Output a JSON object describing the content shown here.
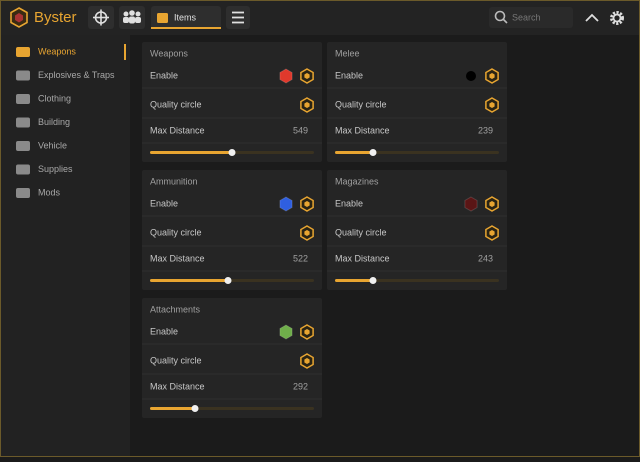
{
  "header": {
    "app_name": "Byster",
    "tab": "Items",
    "search_placeholder": "Search"
  },
  "sidebar": {
    "items": [
      "Weapons",
      "Explosives & Traps",
      "Clothing",
      "Building",
      "Vehicle",
      "Supplies",
      "Mods"
    ],
    "active": 0
  },
  "cards": [
    {
      "title": "Weapons",
      "enable_label": "Enable",
      "quality_label": "Quality circle",
      "distance_label": "Max Distance",
      "distance": "549",
      "enable_color": "#e0392c",
      "enable_shape": "hexagon"
    },
    {
      "title": "Melee",
      "enable_label": "Enable",
      "quality_label": "Quality circle",
      "distance_label": "Max Distance",
      "distance": "239",
      "enable_color": "#000000",
      "enable_shape": "circle"
    },
    {
      "title": "Ammunition",
      "enable_label": "Enable",
      "quality_label": "Quality circle",
      "distance_label": "Max Distance",
      "distance": "522",
      "enable_color": "#2f5fe0",
      "enable_shape": "hexagon"
    },
    {
      "title": "Magazines",
      "enable_label": "Enable",
      "quality_label": "Quality circle",
      "distance_label": "Max Distance",
      "distance": "243",
      "enable_color": "#5a1515",
      "enable_shape": "hexagon"
    },
    {
      "title": "Attachments",
      "enable_label": "Enable",
      "quality_label": "Quality circle",
      "distance_label": "Max Distance",
      "distance": "292",
      "enable_color": "#6fae4a",
      "enable_shape": "hexagon"
    }
  ]
}
